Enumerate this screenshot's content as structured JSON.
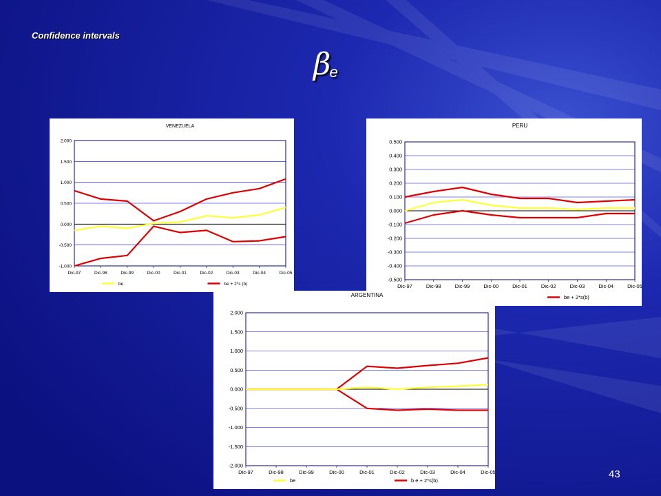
{
  "slide": {
    "label": "Confidence intervals",
    "beta_symbol": "β",
    "beta_subscript": "e",
    "page_number": "43"
  },
  "colors": {
    "background": "#1a1f9e",
    "plot_border": "#000080",
    "gridline": "#0000ff",
    "zero_line": "#000000",
    "be_series": "#ffff33",
    "band_series": "#e00000"
  },
  "chart_data": [
    {
      "id": "venezuela",
      "type": "line",
      "title": "VENEZUELA",
      "x": [
        "Dic-97",
        "Dic-98",
        "Dic-99",
        "Dic-00",
        "Dic-01",
        "Dic-02",
        "Dic-03",
        "Dic-04",
        "Dic-05"
      ],
      "ylim": [
        -1.0,
        2.0
      ],
      "yticks": [
        "2.000",
        "1.500",
        "1.000",
        "0.500",
        "0.000",
        "-0.500",
        "-1.000"
      ],
      "grid": true,
      "legend": "bottom",
      "series": [
        {
          "name": "be",
          "color": "yellow",
          "values": [
            -0.15,
            -0.05,
            -0.1,
            0.02,
            0.05,
            0.2,
            0.15,
            0.22,
            0.4
          ]
        },
        {
          "name": "be + 2*s (b)",
          "color": "red",
          "values": [
            0.8,
            0.6,
            0.55,
            0.08,
            0.3,
            0.6,
            0.75,
            0.85,
            1.08
          ]
        },
        {
          "name": "",
          "color": "red",
          "values": [
            -1.0,
            -0.82,
            -0.75,
            -0.05,
            -0.2,
            -0.15,
            -0.42,
            -0.4,
            -0.3
          ]
        }
      ]
    },
    {
      "id": "peru",
      "type": "line",
      "title": "PERU",
      "x": [
        "Dic-97",
        "Dic-98",
        "Dic-99",
        "Dic-00",
        "Dic-01",
        "Dic-02",
        "Dic-03",
        "Dic-04",
        "Dic-05"
      ],
      "ylim": [
        -0.5,
        0.5
      ],
      "yticks": [
        "0.500",
        "0.400",
        "0.300",
        "0.200",
        "0.100",
        "0.000",
        "-0.100",
        "-0.200",
        "-0.300",
        "-0.400",
        "-0.500"
      ],
      "grid": true,
      "legend": "bottom",
      "series": [
        {
          "name": "be",
          "color": "yellow",
          "values": [
            0.0,
            0.06,
            0.08,
            0.04,
            0.02,
            0.02,
            0.01,
            0.02,
            0.02
          ]
        },
        {
          "name": "be + 2*s(b)",
          "color": "red",
          "values": [
            0.1,
            0.14,
            0.17,
            0.12,
            0.09,
            0.09,
            0.06,
            0.07,
            0.08
          ]
        },
        {
          "name": "",
          "color": "red",
          "values": [
            -0.09,
            -0.03,
            0.0,
            -0.03,
            -0.05,
            -0.05,
            -0.05,
            -0.02,
            -0.02
          ]
        }
      ]
    },
    {
      "id": "argentina",
      "type": "line",
      "title": "ARGENTINA",
      "x": [
        "Dic-97",
        "Dic-98",
        "Dic-99",
        "Dic-00",
        "Dic-01",
        "Dic-02",
        "Dic-03",
        "Dic-04",
        "Dic-05"
      ],
      "ylim": [
        -2.0,
        2.0
      ],
      "yticks": [
        "2.000",
        "1.500",
        "1.000",
        "0.500",
        "0.000",
        "-0.500",
        "-1.000",
        "-1.500",
        "-2.000"
      ],
      "grid": true,
      "legend": "bottom",
      "series": [
        {
          "name": "be",
          "color": "yellow",
          "values": [
            0.0,
            0.0,
            0.0,
            0.0,
            0.05,
            0.0,
            0.05,
            0.08,
            0.12
          ]
        },
        {
          "name": "b e + 2*s(b)",
          "color": "red",
          "values": [
            0.0,
            0.0,
            0.0,
            0.0,
            0.6,
            0.55,
            0.62,
            0.68,
            0.82
          ]
        },
        {
          "name": "",
          "color": "red",
          "values": [
            0.0,
            0.0,
            0.0,
            0.0,
            -0.5,
            -0.55,
            -0.52,
            -0.55,
            -0.55
          ]
        }
      ]
    }
  ]
}
